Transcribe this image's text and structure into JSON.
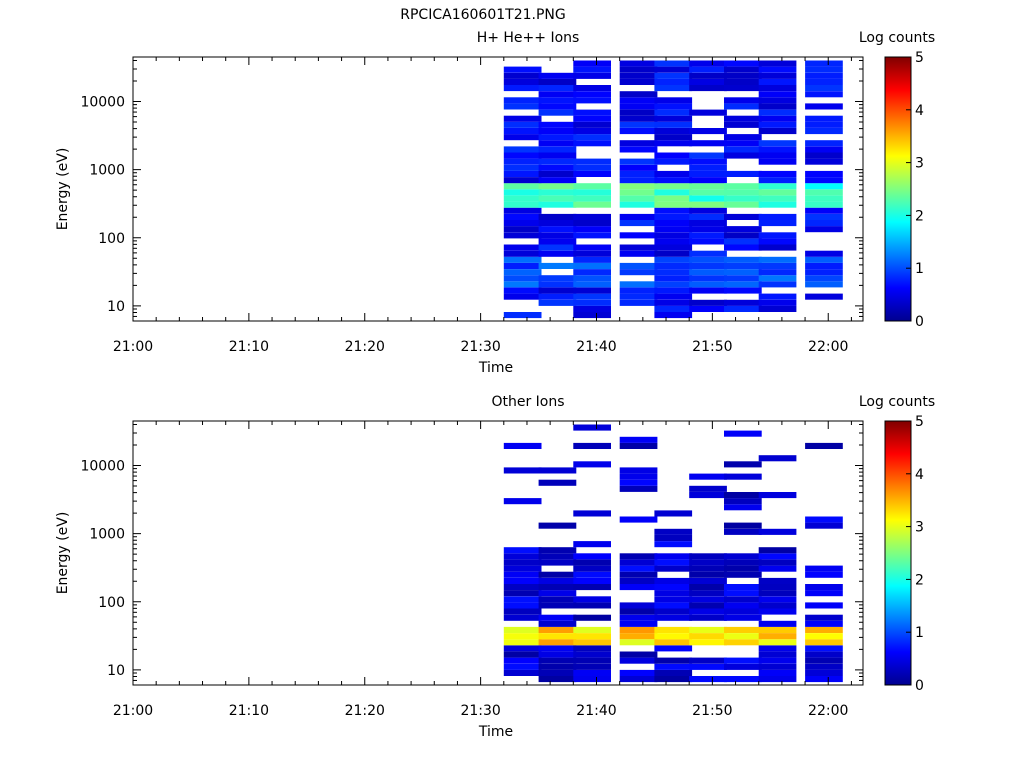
{
  "figure_title": "RPCICA160601T21.PNG",
  "chart_data": [
    {
      "type": "heatmap",
      "title": "H+ He++ Ions",
      "xlabel": "Time",
      "ylabel": "Energy (eV)",
      "xlim": [
        "21:00",
        "22:03"
      ],
      "x_ticks": [
        "21:00",
        "21:10",
        "21:20",
        "21:30",
        "21:40",
        "21:50",
        "22:00"
      ],
      "y_scale": "log",
      "ylim": [
        6,
        45000
      ],
      "y_ticks": [
        10,
        100,
        1000,
        10000
      ],
      "colorbar": {
        "label": "Log counts",
        "min": 0,
        "max": 5,
        "ticks": [
          0,
          1,
          2,
          3,
          4,
          5
        ]
      },
      "time_bins_start": [
        "21:32",
        "21:35",
        "21:38",
        "21:42",
        "21:45",
        "21:48",
        "21:51",
        "21:54",
        "21:58"
      ],
      "time_bin_width_min": 3.25,
      "energy_bins": 40,
      "energy_range_eV": [
        10,
        40000
      ],
      "peak_band": {
        "energy_eV": [
          250,
          700
        ],
        "log_counts": 2.2
      },
      "typical_background_log_counts": 0.6,
      "low_energy_band": {
        "energy_eV": [
          20,
          50
        ],
        "log_counts": 1.0
      },
      "empty_cells": "scattered (white)"
    },
    {
      "type": "heatmap",
      "title": "Other Ions",
      "xlabel": "Time",
      "ylabel": "Energy (eV)",
      "xlim": [
        "21:00",
        "22:03"
      ],
      "x_ticks": [
        "21:00",
        "21:10",
        "21:20",
        "21:30",
        "21:40",
        "21:50",
        "22:00"
      ],
      "y_scale": "log",
      "ylim": [
        6,
        45000
      ],
      "y_ticks": [
        10,
        100,
        1000,
        10000
      ],
      "colorbar": {
        "label": "Log counts",
        "min": 0,
        "max": 5,
        "ticks": [
          0,
          1,
          2,
          3,
          4,
          5
        ]
      },
      "time_bins_start": [
        "21:32",
        "21:35",
        "21:38",
        "21:42",
        "21:45",
        "21:48",
        "21:51",
        "21:54",
        "21:58"
      ],
      "time_bin_width_min": 3.25,
      "energy_bins": 40,
      "energy_range_eV": [
        10,
        40000
      ],
      "peak_band": {
        "energy_eV": [
          22,
          45
        ],
        "log_counts": 3.3
      },
      "typical_background_log_counts": 0.4,
      "sparse_above_eV": 500,
      "empty_cells": "mostly empty above 500 eV (white)"
    }
  ]
}
